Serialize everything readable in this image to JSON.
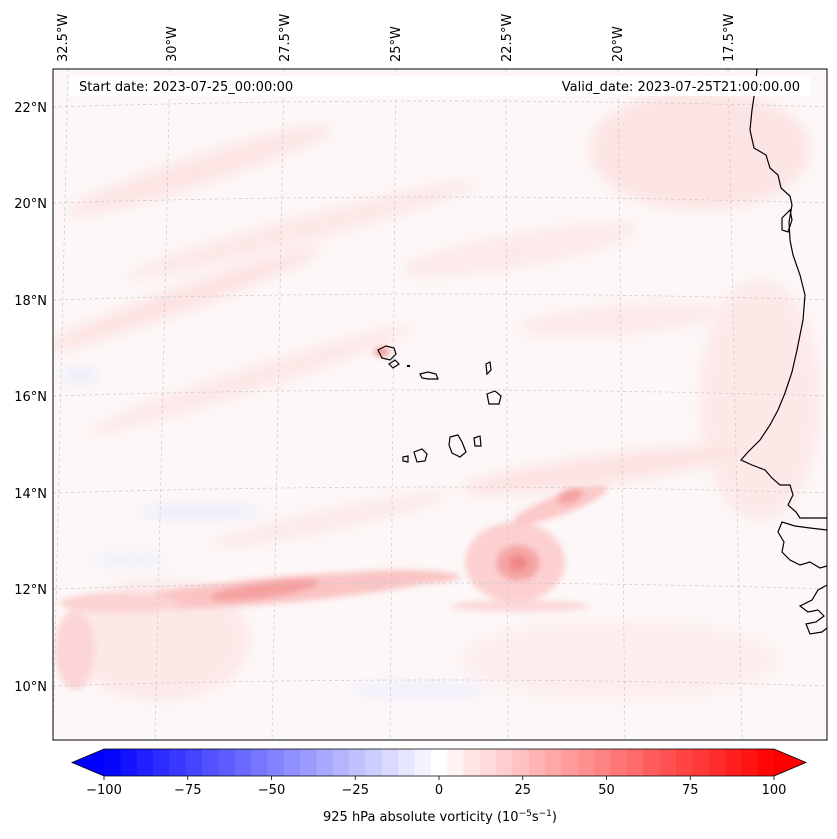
{
  "map": {
    "header": {
      "start_label": "Start date: 2023-07-25_00:00:00",
      "valid_label": "Valid_date: 2023-07-25T21:00:00.00"
    },
    "lon_labels": [
      "32.5°W",
      "30°W",
      "27.5°W",
      "25°W",
      "22.5°W",
      "20°W",
      "17.5°W"
    ],
    "lat_labels": [
      "22°N",
      "20°N",
      "18°N",
      "16°N",
      "14°N",
      "12°N",
      "10°N"
    ],
    "colors": {
      "land_outline": "#000000",
      "background": "#fdf7f7",
      "gridline": "#c8c8c8"
    }
  },
  "colorbar": {
    "ticks": [
      "−100",
      "−75",
      "−50",
      "−25",
      "0",
      "25",
      "50",
      "75",
      "100"
    ],
    "label_main": "925 hPa absolute vorticity (10",
    "label_exp1": "−5",
    "label_unit": "s",
    "label_exp2": "−1",
    "label_close": ")",
    "range": [
      -100,
      100
    ],
    "levels": 41,
    "cmap": "bwr"
  }
}
